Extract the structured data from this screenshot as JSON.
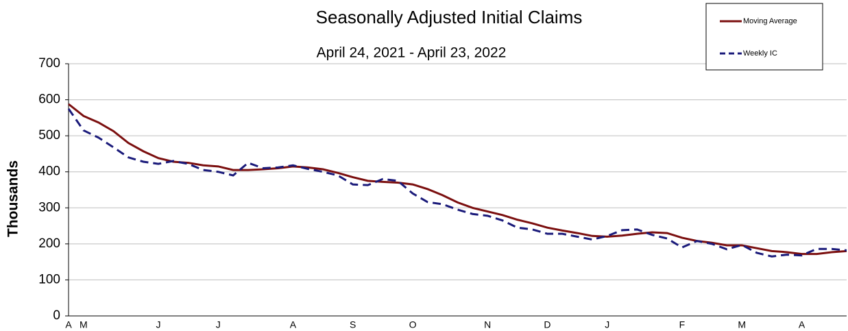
{
  "chart_data": {
    "type": "line",
    "title": "Seasonally Adjusted Initial Claims",
    "subtitle": "April 24, 2021 - April 23, 2022",
    "y_label": "Thousands",
    "categories": [
      "A",
      "M",
      null,
      null,
      null,
      null,
      "J",
      null,
      null,
      null,
      "J",
      null,
      null,
      null,
      null,
      "A",
      null,
      null,
      null,
      "S",
      null,
      null,
      null,
      "O",
      null,
      null,
      null,
      null,
      "N",
      null,
      null,
      null,
      "D",
      null,
      null,
      null,
      "J",
      null,
      null,
      null,
      null,
      "F",
      null,
      null,
      null,
      "M",
      null,
      null,
      null,
      "A",
      null,
      null,
      null
    ],
    "series": [
      {
        "name": "Moving Average",
        "color": "#7b0f0f",
        "dash": false,
        "values": [
          588,
          555,
          537,
          513,
          480,
          457,
          438,
          428,
          425,
          418,
          415,
          405,
          405,
          407,
          410,
          415,
          412,
          407,
          397,
          385,
          375,
          372,
          370,
          365,
          352,
          335,
          315,
          300,
          290,
          280,
          267,
          257,
          245,
          237,
          230,
          222,
          220,
          223,
          228,
          232,
          230,
          217,
          208,
          203,
          196,
          196,
          188,
          180,
          177,
          172,
          172,
          177,
          180
        ]
      },
      {
        "name": "Weekly IC",
        "color": "#1a1a7a",
        "dash": true,
        "values": [
          575,
          515,
          495,
          468,
          440,
          428,
          422,
          430,
          422,
          405,
          400,
          390,
          425,
          410,
          412,
          418,
          408,
          400,
          390,
          365,
          363,
          380,
          375,
          340,
          316,
          310,
          295,
          283,
          278,
          265,
          245,
          240,
          228,
          228,
          220,
          212,
          222,
          238,
          240,
          225,
          215,
          190,
          208,
          200,
          185,
          197,
          175,
          165,
          170,
          168,
          186,
          186,
          182
        ]
      }
    ],
    "ylim": [
      0,
      700
    ],
    "yticks": [
      0,
      100,
      200,
      300,
      400,
      500,
      600,
      700
    ],
    "grid": true,
    "legend": "top-right"
  }
}
